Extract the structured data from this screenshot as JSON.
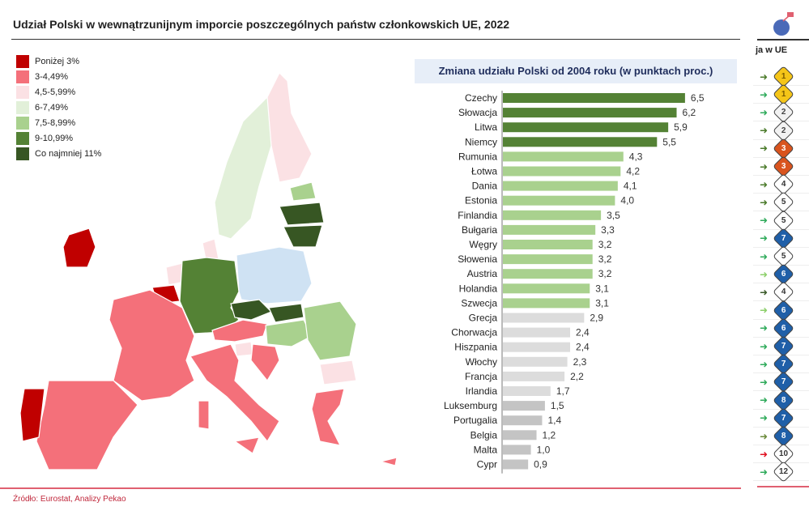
{
  "title": "Udział Polski w wewnątrzunijnym imporcie poszczególnych państw członkowskich UE, 2022",
  "source": "Źródło: Eurostat, Analizy Pekao",
  "legend": [
    {
      "label": "Poniżej 3%",
      "color": "#c00000"
    },
    {
      "label": "3-4,49%",
      "color": "#f4707a"
    },
    {
      "label": "4,5-5,99%",
      "color": "#fbe1e4"
    },
    {
      "label": "6-7,49%",
      "color": "#e2f0d9"
    },
    {
      "label": "7,5-8,99%",
      "color": "#a9d18e"
    },
    {
      "label": "9-10,99%",
      "color": "#548235"
    },
    {
      "label": "Co najmniej 11%",
      "color": "#375623"
    }
  ],
  "rank_strip": {
    "header": "ja w UE",
    "ranks": [
      {
        "rank": "1",
        "style": "gold",
        "arrow": "#4a7a2a"
      },
      {
        "rank": "1",
        "style": "gold",
        "arrow": "#2eaa5a"
      },
      {
        "rank": "2",
        "style": "silver",
        "arrow": "#2eaa5a"
      },
      {
        "rank": "2",
        "style": "silver",
        "arrow": "#4a7a2a"
      },
      {
        "rank": "3",
        "style": "bronze",
        "arrow": "#4a7a2a"
      },
      {
        "rank": "3",
        "style": "bronze",
        "arrow": "#4a7a2a"
      },
      {
        "rank": "4",
        "style": "white",
        "arrow": "#4a7a2a"
      },
      {
        "rank": "5",
        "style": "white",
        "arrow": "#4a7a2a"
      },
      {
        "rank": "5",
        "style": "white",
        "arrow": "#2eaa5a"
      },
      {
        "rank": "7",
        "style": "blue",
        "arrow": "#2eaa5a"
      },
      {
        "rank": "5",
        "style": "white",
        "arrow": "#2eaa5a"
      },
      {
        "rank": "6",
        "style": "blue",
        "arrow": "#8ccf6a"
      },
      {
        "rank": "4",
        "style": "white",
        "arrow": "#3a5a2a"
      },
      {
        "rank": "6",
        "style": "blue",
        "arrow": "#8ccf6a"
      },
      {
        "rank": "6",
        "style": "blue",
        "arrow": "#2eaa5a"
      },
      {
        "rank": "7",
        "style": "blue",
        "arrow": "#2eaa5a"
      },
      {
        "rank": "7",
        "style": "blue",
        "arrow": "#2eaa5a"
      },
      {
        "rank": "7",
        "style": "blue",
        "arrow": "#2eaa5a"
      },
      {
        "rank": "8",
        "style": "blue",
        "arrow": "#2eaa5a"
      },
      {
        "rank": "7",
        "style": "blue",
        "arrow": "#2eaa5a"
      },
      {
        "rank": "8",
        "style": "blue",
        "arrow": "#6a8a3a"
      },
      {
        "rank": "10",
        "style": "white",
        "arrow": "#e01020"
      },
      {
        "rank": "12",
        "style": "white",
        "arrow": "#2eaa5a"
      }
    ]
  },
  "chart_data": {
    "type": "bar",
    "orientation": "horizontal",
    "title": "Zmiana udziału Polski od 2004 roku (w punktach proc.)",
    "categories": [
      "Czechy",
      "Słowacja",
      "Litwa",
      "Niemcy",
      "Rumunia",
      "Łotwa",
      "Dania",
      "Estonia",
      "Finlandia",
      "Bułgaria",
      "Węgry",
      "Słowenia",
      "Austria",
      "Holandia",
      "Szwecja",
      "Grecja",
      "Chorwacja",
      "Hiszpania",
      "Włochy",
      "Francja",
      "Irlandia",
      "Luksemburg",
      "Portugalia",
      "Belgia",
      "Malta",
      "Cypr"
    ],
    "values": [
      6.5,
      6.2,
      5.9,
      5.5,
      4.3,
      4.2,
      4.1,
      4.0,
      3.5,
      3.3,
      3.2,
      3.2,
      3.2,
      3.1,
      3.1,
      2.9,
      2.4,
      2.4,
      2.3,
      2.2,
      1.7,
      1.5,
      1.4,
      1.2,
      1.0,
      0.9
    ],
    "labels": [
      "6,5",
      "6,2",
      "5,9",
      "5,5",
      "4,3",
      "4,2",
      "4,1",
      "4,0",
      "3,5",
      "3,3",
      "3,2",
      "3,2",
      "3,2",
      "3,1",
      "3,1",
      "2,9",
      "2,4",
      "2,4",
      "2,3",
      "2,2",
      "1,7",
      "1,5",
      "1,4",
      "1,2",
      "1,0",
      "0,9"
    ],
    "colors": [
      "#548235",
      "#548235",
      "#548235",
      "#548235",
      "#a9d18e",
      "#a9d18e",
      "#a9d18e",
      "#a9d18e",
      "#a9d18e",
      "#a9d18e",
      "#a9d18e",
      "#a9d18e",
      "#a9d18e",
      "#a9d18e",
      "#a9d18e",
      "#dcdcdc",
      "#dcdcdc",
      "#dcdcdc",
      "#dcdcdc",
      "#dcdcdc",
      "#dcdcdc",
      "#c4c4c4",
      "#c4c4c4",
      "#c4c4c4",
      "#c4c4c4",
      "#c4c4c4"
    ],
    "xlim": [
      0,
      7
    ]
  }
}
